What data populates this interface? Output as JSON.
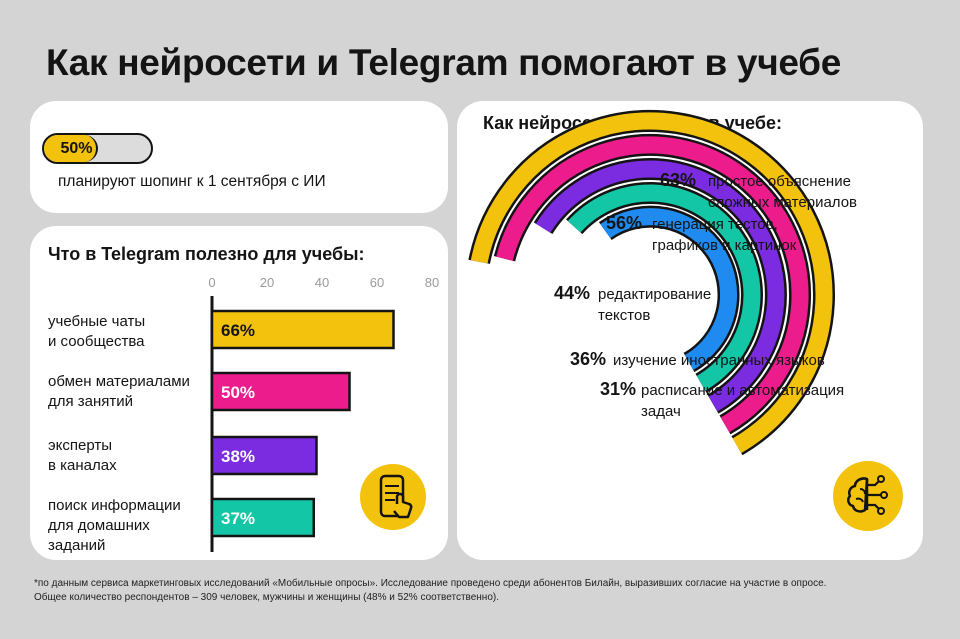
{
  "title": "Как нейросети и Telegram помогают в учебе",
  "stat": {
    "value_label": "50%",
    "value": 50,
    "caption": "планируют шопинг к 1 сентября с ИИ"
  },
  "colors": {
    "yellow": "#f3c20d",
    "pink": "#ec1c8c",
    "purple": "#7b2be0",
    "teal": "#13c6a5",
    "blue": "#1f8bf0",
    "dark": "#141414"
  },
  "icons": {
    "telegram_card": "phone-hand-icon",
    "ai_card": "brain-circuit-icon"
  },
  "chart_data": [
    {
      "type": "bar",
      "orientation": "horizontal",
      "title": "Что в Telegram полезно для учебы:",
      "xlim": [
        0,
        80
      ],
      "x_ticks": [
        "0",
        "20",
        "40",
        "60",
        "80"
      ],
      "categories": [
        "учебные чаты и сообщества",
        "обмен материалами для занятий",
        "эксперты в каналах",
        "поиск информации для домашних заданий"
      ],
      "category_lines": [
        [
          "учебные чаты",
          "и сообщества"
        ],
        [
          "обмен материалами",
          "для занятий"
        ],
        [
          "эксперты",
          "в каналах"
        ],
        [
          "поиск информации",
          "для домашних",
          "заданий"
        ]
      ],
      "values": [
        66,
        50,
        38,
        37
      ],
      "value_labels": [
        "66%",
        "50%",
        "38%",
        "37%"
      ],
      "colors": [
        "#f3c20d",
        "#ec1c8c",
        "#7b2be0",
        "#13c6a5"
      ]
    },
    {
      "type": "radial-bar",
      "title": "Как нейросети помогают в учебе:",
      "categories": [
        "простое объяснение сложных материалов",
        "генерация тестов, графиков и картинок",
        "редактирование текстов",
        "изучение иностранных языков",
        "расписание и автоматизация задач"
      ],
      "category_lines": [
        [
          "простое объяснение",
          "сложных материалов"
        ],
        [
          "генерация тестов,",
          "графиков и картинок"
        ],
        [
          "редактирование",
          "текстов"
        ],
        [
          "изучение иностранных языков"
        ],
        [
          "расписание и автоматизация",
          "задач"
        ]
      ],
      "values": [
        63,
        56,
        44,
        36,
        31
      ],
      "value_labels": [
        "63%",
        "56%",
        "44%",
        "36%",
        "31%"
      ],
      "colors": [
        "#f3c20d",
        "#ec1c8c",
        "#7b2be0",
        "#13c6a5",
        "#1f8bf0"
      ]
    }
  ],
  "footnote": {
    "line1": "*по данным сервиса маркетинговых исследований «Мобильные опросы». Исследование проведено среди абонентов Билайн, выразивших согласие на участие в опросе.",
    "line2": "Общее количество респондентов – 309 человек, мужчины и женщины (48% и 52% соответственно)."
  }
}
